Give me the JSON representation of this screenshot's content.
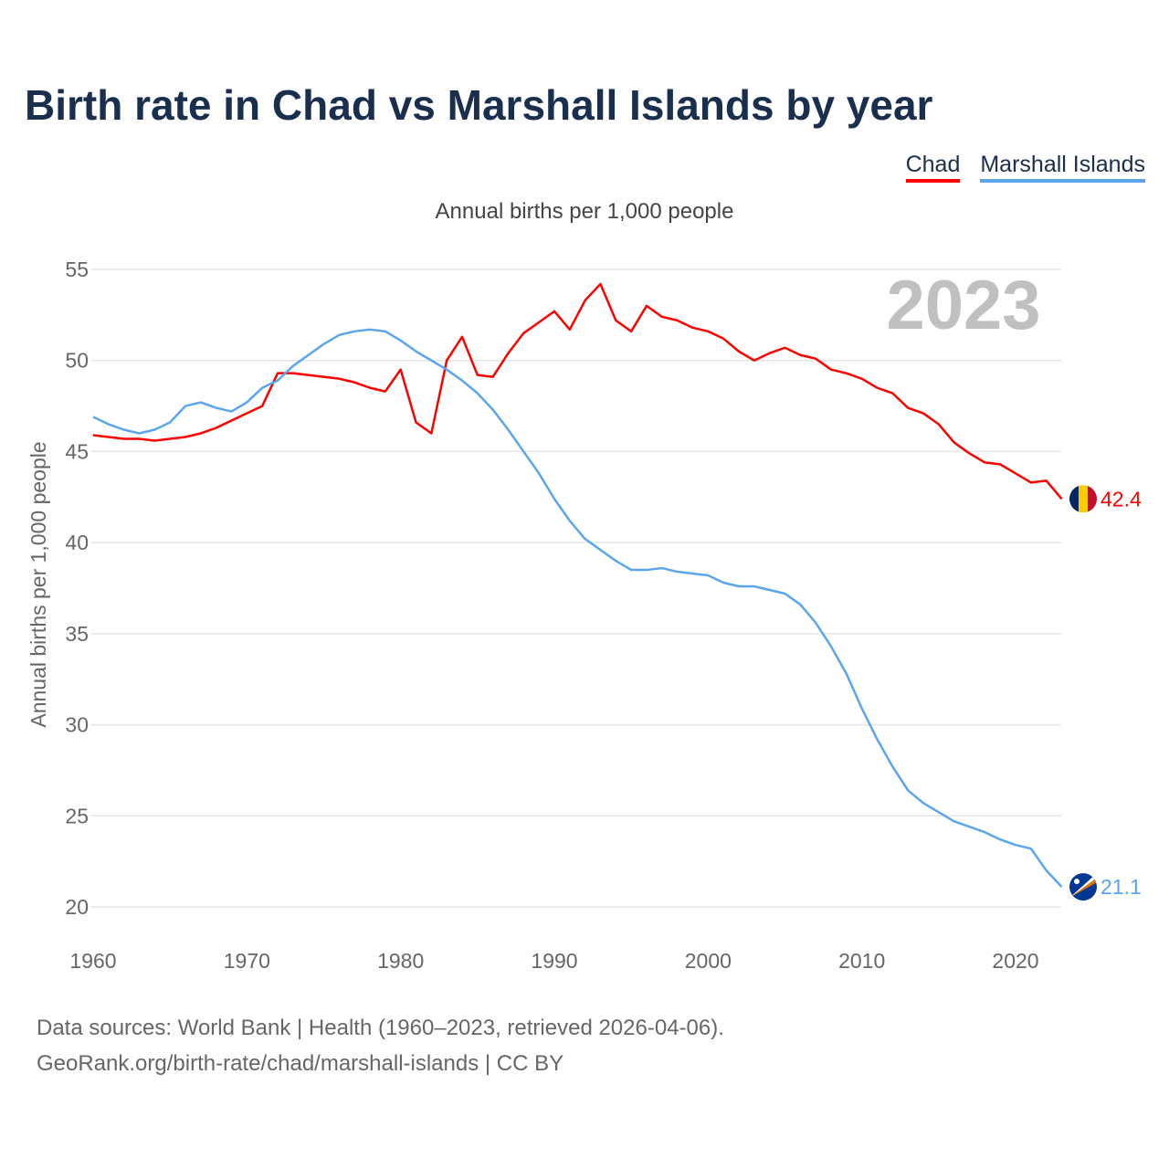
{
  "title": "Birth rate in Chad vs Marshall Islands by year",
  "subtitle": "Annual births per 1,000 people",
  "year_label": "2023",
  "footer": {
    "line1": "Data sources: World Bank | Health (1960–2023, retrieved 2026-04-06).",
    "line2": "GeoRank.org/birth-rate/chad/marshall-islands | CC BY"
  },
  "chart_data": {
    "type": "line",
    "title": "Birth rate in Chad vs Marshall Islands by year",
    "ylabel": "Annual births per 1,000 people",
    "xlabel": "",
    "xlim": [
      1960,
      2023
    ],
    "ylim": [
      20,
      55
    ],
    "yticks": [
      20,
      25,
      30,
      35,
      40,
      45,
      50,
      55
    ],
    "xticks": [
      1960,
      1970,
      1980,
      1990,
      2000,
      2010,
      2020
    ],
    "grid": true,
    "legend_position": "top-right",
    "x_start": 1960,
    "series": [
      {
        "name": "Chad",
        "color": "#ff0000",
        "end_label": "42.4",
        "flag": "chad-flag",
        "values": [
          45.9,
          45.8,
          45.7,
          45.7,
          45.6,
          45.7,
          45.8,
          46.0,
          46.3,
          46.7,
          47.1,
          47.5,
          49.3,
          49.3,
          49.2,
          49.1,
          49.0,
          48.8,
          48.5,
          48.3,
          49.5,
          46.6,
          46.0,
          50.0,
          51.3,
          49.2,
          49.1,
          50.4,
          51.5,
          52.1,
          52.7,
          51.7,
          53.3,
          54.2,
          52.2,
          51.6,
          53.0,
          52.4,
          52.2,
          51.8,
          51.6,
          51.2,
          50.5,
          50.0,
          50.4,
          50.7,
          50.3,
          50.1,
          49.5,
          49.3,
          49.0,
          48.5,
          48.2,
          47.4,
          47.1,
          46.5,
          45.5,
          44.9,
          44.4,
          44.3,
          43.8,
          43.3,
          43.4,
          42.4
        ]
      },
      {
        "name": "Marshall Islands",
        "color": "#5aa5ee",
        "end_label": "21.1",
        "flag": "marshall-islands-flag",
        "values": [
          46.9,
          46.5,
          46.2,
          46.0,
          46.2,
          46.6,
          47.5,
          47.7,
          47.4,
          47.2,
          47.7,
          48.5,
          48.9,
          49.7,
          50.3,
          50.9,
          51.4,
          51.6,
          51.7,
          51.6,
          51.1,
          50.5,
          50.0,
          49.5,
          48.9,
          48.2,
          47.3,
          46.2,
          45.0,
          43.8,
          42.4,
          41.2,
          40.2,
          39.6,
          39.0,
          38.5,
          38.5,
          38.6,
          38.4,
          38.3,
          38.2,
          37.8,
          37.6,
          37.6,
          37.4,
          37.2,
          36.6,
          35.6,
          34.3,
          32.8,
          30.9,
          29.2,
          27.7,
          26.4,
          25.7,
          25.2,
          24.7,
          24.4,
          24.1,
          23.7,
          23.4,
          23.2,
          22.0,
          21.1
        ]
      }
    ]
  }
}
